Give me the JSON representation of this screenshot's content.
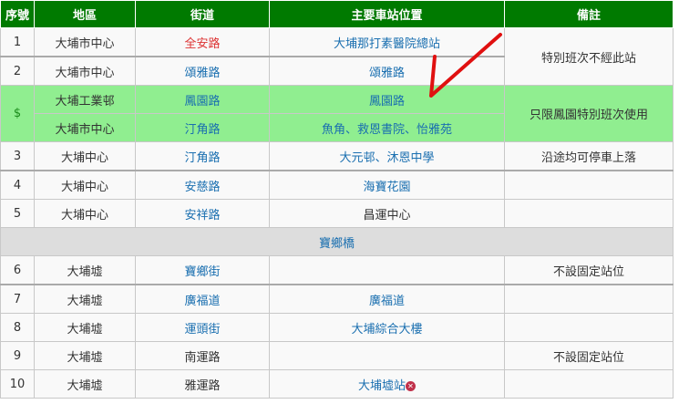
{
  "headers": [
    "序號",
    "地區",
    "街道",
    "主要車站位置",
    "備註"
  ],
  "rows": [
    {
      "no": "1",
      "area": "大埔市中心",
      "street": "全安路",
      "station": "大埔那打素醫院總站"
    },
    {
      "no": "2",
      "area": "大埔市中心",
      "street": "頌雅路",
      "station": "頌雅路"
    },
    {
      "no": "$",
      "area": "大埔工業邨",
      "street": "鳳園路",
      "station": "鳳園路"
    },
    {
      "area": "大埔市中心",
      "street": "汀角路",
      "station": "魚角、救恩書院、怡雅苑"
    },
    {
      "no": "3",
      "area": "大埔中心",
      "street": "汀角路",
      "station": "大元邨、沐恩中學",
      "remark": "沿途均可停車上落"
    },
    {
      "no": "4",
      "area": "大埔中心",
      "street": "安慈路",
      "station": "海寶花園"
    },
    {
      "no": "5",
      "area": "大埔中心",
      "street": "安祥路",
      "station": "昌運中心"
    },
    {
      "no": "6",
      "area": "大埔墟",
      "street": "寶鄉街",
      "remark": "不設固定站位"
    },
    {
      "no": "7",
      "area": "大埔墟",
      "street": "廣福道",
      "station": "廣福道"
    },
    {
      "no": "8",
      "area": "大埔墟",
      "street": "運頭街",
      "station": "大埔綜合大樓"
    },
    {
      "no": "9",
      "area": "大埔墟",
      "street": "南運路",
      "remark": "不設固定站位"
    },
    {
      "no": "10",
      "area": "大埔墟",
      "street": "雅運路",
      "station": "大埔墟站"
    }
  ],
  "remark_rows_1_2": "特別班次不經此站",
  "remark_green": "只限鳳園特別班次使用",
  "section": "寶鄉橋",
  "colors": {
    "header": "#007a00",
    "highlight": "#90ee90",
    "link": "#1a6fb0",
    "annotation": "#e01010"
  },
  "icons": {
    "closed_station": "x-circle-icon",
    "annotation": "red-checkmark"
  }
}
